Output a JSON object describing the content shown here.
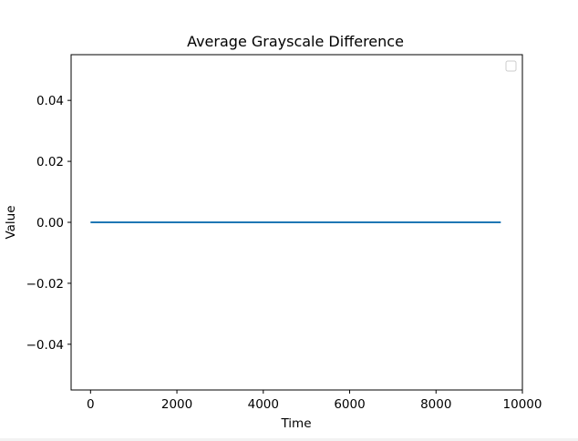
{
  "chart_data": {
    "type": "line",
    "title": "Average Grayscale Difference",
    "xlabel": "Time",
    "ylabel": "Value",
    "xlim": [
      -450,
      10000
    ],
    "ylim": [
      -0.055,
      0.055
    ],
    "xticks": [
      0,
      2000,
      4000,
      6000,
      8000,
      10000
    ],
    "xtick_labels": [
      "0",
      "2000",
      "4000",
      "6000",
      "8000",
      "10000"
    ],
    "yticks": [
      0.04,
      0.02,
      0.0,
      -0.02,
      -0.04
    ],
    "ytick_labels": [
      "0.04",
      "0.02",
      "0.00",
      "−0.02",
      "−0.04"
    ],
    "series": [
      {
        "x": [
          0,
          9500
        ],
        "y": [
          0.0,
          0.0
        ],
        "color": "#1f77b4"
      }
    ],
    "legend": {
      "placement": "top-right",
      "entries": []
    },
    "grid": false
  }
}
